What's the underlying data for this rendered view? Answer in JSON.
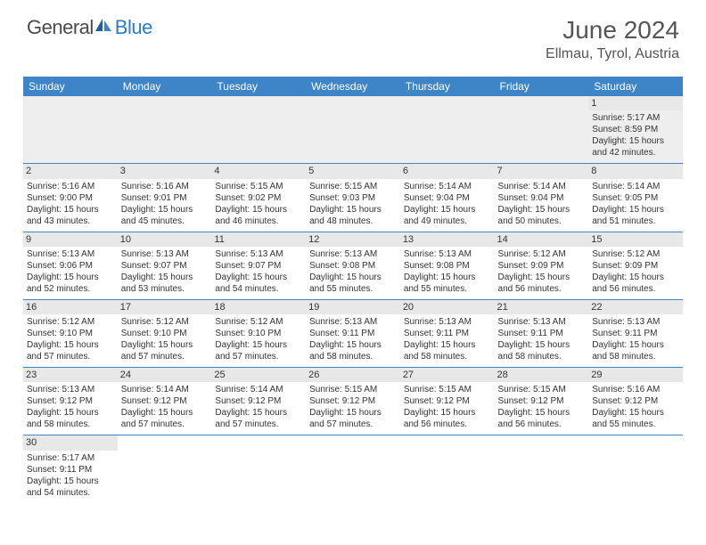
{
  "brand": {
    "part1": "General",
    "part2": "Blue"
  },
  "title": "June 2024",
  "location": "Ellmau, Tyrol, Austria",
  "colors": {
    "header_bg": "#3d85c6",
    "header_text": "#ffffff",
    "day_header_bg": "#e8e8e8",
    "border": "#3d85c6",
    "logo_gray": "#4a4a4a",
    "logo_blue": "#2b7cc4"
  },
  "weekdays": [
    "Sunday",
    "Monday",
    "Tuesday",
    "Wednesday",
    "Thursday",
    "Friday",
    "Saturday"
  ],
  "weeks": [
    [
      null,
      null,
      null,
      null,
      null,
      null,
      {
        "d": "1",
        "sr": "Sunrise: 5:17 AM",
        "ss": "Sunset: 8:59 PM",
        "dl1": "Daylight: 15 hours",
        "dl2": "and 42 minutes."
      }
    ],
    [
      {
        "d": "2",
        "sr": "Sunrise: 5:16 AM",
        "ss": "Sunset: 9:00 PM",
        "dl1": "Daylight: 15 hours",
        "dl2": "and 43 minutes."
      },
      {
        "d": "3",
        "sr": "Sunrise: 5:16 AM",
        "ss": "Sunset: 9:01 PM",
        "dl1": "Daylight: 15 hours",
        "dl2": "and 45 minutes."
      },
      {
        "d": "4",
        "sr": "Sunrise: 5:15 AM",
        "ss": "Sunset: 9:02 PM",
        "dl1": "Daylight: 15 hours",
        "dl2": "and 46 minutes."
      },
      {
        "d": "5",
        "sr": "Sunrise: 5:15 AM",
        "ss": "Sunset: 9:03 PM",
        "dl1": "Daylight: 15 hours",
        "dl2": "and 48 minutes."
      },
      {
        "d": "6",
        "sr": "Sunrise: 5:14 AM",
        "ss": "Sunset: 9:04 PM",
        "dl1": "Daylight: 15 hours",
        "dl2": "and 49 minutes."
      },
      {
        "d": "7",
        "sr": "Sunrise: 5:14 AM",
        "ss": "Sunset: 9:04 PM",
        "dl1": "Daylight: 15 hours",
        "dl2": "and 50 minutes."
      },
      {
        "d": "8",
        "sr": "Sunrise: 5:14 AM",
        "ss": "Sunset: 9:05 PM",
        "dl1": "Daylight: 15 hours",
        "dl2": "and 51 minutes."
      }
    ],
    [
      {
        "d": "9",
        "sr": "Sunrise: 5:13 AM",
        "ss": "Sunset: 9:06 PM",
        "dl1": "Daylight: 15 hours",
        "dl2": "and 52 minutes."
      },
      {
        "d": "10",
        "sr": "Sunrise: 5:13 AM",
        "ss": "Sunset: 9:07 PM",
        "dl1": "Daylight: 15 hours",
        "dl2": "and 53 minutes."
      },
      {
        "d": "11",
        "sr": "Sunrise: 5:13 AM",
        "ss": "Sunset: 9:07 PM",
        "dl1": "Daylight: 15 hours",
        "dl2": "and 54 minutes."
      },
      {
        "d": "12",
        "sr": "Sunrise: 5:13 AM",
        "ss": "Sunset: 9:08 PM",
        "dl1": "Daylight: 15 hours",
        "dl2": "and 55 minutes."
      },
      {
        "d": "13",
        "sr": "Sunrise: 5:13 AM",
        "ss": "Sunset: 9:08 PM",
        "dl1": "Daylight: 15 hours",
        "dl2": "and 55 minutes."
      },
      {
        "d": "14",
        "sr": "Sunrise: 5:12 AM",
        "ss": "Sunset: 9:09 PM",
        "dl1": "Daylight: 15 hours",
        "dl2": "and 56 minutes."
      },
      {
        "d": "15",
        "sr": "Sunrise: 5:12 AM",
        "ss": "Sunset: 9:09 PM",
        "dl1": "Daylight: 15 hours",
        "dl2": "and 56 minutes."
      }
    ],
    [
      {
        "d": "16",
        "sr": "Sunrise: 5:12 AM",
        "ss": "Sunset: 9:10 PM",
        "dl1": "Daylight: 15 hours",
        "dl2": "and 57 minutes."
      },
      {
        "d": "17",
        "sr": "Sunrise: 5:12 AM",
        "ss": "Sunset: 9:10 PM",
        "dl1": "Daylight: 15 hours",
        "dl2": "and 57 minutes."
      },
      {
        "d": "18",
        "sr": "Sunrise: 5:12 AM",
        "ss": "Sunset: 9:10 PM",
        "dl1": "Daylight: 15 hours",
        "dl2": "and 57 minutes."
      },
      {
        "d": "19",
        "sr": "Sunrise: 5:13 AM",
        "ss": "Sunset: 9:11 PM",
        "dl1": "Daylight: 15 hours",
        "dl2": "and 58 minutes."
      },
      {
        "d": "20",
        "sr": "Sunrise: 5:13 AM",
        "ss": "Sunset: 9:11 PM",
        "dl1": "Daylight: 15 hours",
        "dl2": "and 58 minutes."
      },
      {
        "d": "21",
        "sr": "Sunrise: 5:13 AM",
        "ss": "Sunset: 9:11 PM",
        "dl1": "Daylight: 15 hours",
        "dl2": "and 58 minutes."
      },
      {
        "d": "22",
        "sr": "Sunrise: 5:13 AM",
        "ss": "Sunset: 9:11 PM",
        "dl1": "Daylight: 15 hours",
        "dl2": "and 58 minutes."
      }
    ],
    [
      {
        "d": "23",
        "sr": "Sunrise: 5:13 AM",
        "ss": "Sunset: 9:12 PM",
        "dl1": "Daylight: 15 hours",
        "dl2": "and 58 minutes."
      },
      {
        "d": "24",
        "sr": "Sunrise: 5:14 AM",
        "ss": "Sunset: 9:12 PM",
        "dl1": "Daylight: 15 hours",
        "dl2": "and 57 minutes."
      },
      {
        "d": "25",
        "sr": "Sunrise: 5:14 AM",
        "ss": "Sunset: 9:12 PM",
        "dl1": "Daylight: 15 hours",
        "dl2": "and 57 minutes."
      },
      {
        "d": "26",
        "sr": "Sunrise: 5:15 AM",
        "ss": "Sunset: 9:12 PM",
        "dl1": "Daylight: 15 hours",
        "dl2": "and 57 minutes."
      },
      {
        "d": "27",
        "sr": "Sunrise: 5:15 AM",
        "ss": "Sunset: 9:12 PM",
        "dl1": "Daylight: 15 hours",
        "dl2": "and 56 minutes."
      },
      {
        "d": "28",
        "sr": "Sunrise: 5:15 AM",
        "ss": "Sunset: 9:12 PM",
        "dl1": "Daylight: 15 hours",
        "dl2": "and 56 minutes."
      },
      {
        "d": "29",
        "sr": "Sunrise: 5:16 AM",
        "ss": "Sunset: 9:12 PM",
        "dl1": "Daylight: 15 hours",
        "dl2": "and 55 minutes."
      }
    ],
    [
      {
        "d": "30",
        "sr": "Sunrise: 5:17 AM",
        "ss": "Sunset: 9:11 PM",
        "dl1": "Daylight: 15 hours",
        "dl2": "and 54 minutes."
      },
      null,
      null,
      null,
      null,
      null,
      null
    ]
  ]
}
